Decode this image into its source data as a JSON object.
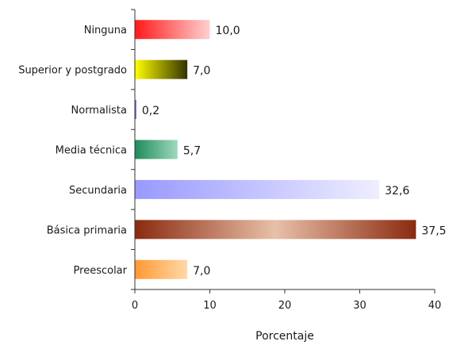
{
  "chart_data": {
    "type": "bar",
    "orientation": "horizontal",
    "categories": [
      "Ninguna",
      "Superior y postgrado",
      "Normalista",
      "Media técnica",
      "Secundaria",
      "Básica primaria",
      "Preescolar"
    ],
    "values": [
      10.0,
      7.0,
      0.2,
      5.7,
      32.6,
      37.5,
      7.0
    ],
    "value_labels": [
      "10,0",
      "7,0",
      "0,2",
      "5,7",
      "32,6",
      "37,5",
      "7,0"
    ],
    "colors": [
      [
        "#ff1a1a",
        "#ffd0d0"
      ],
      [
        "#ffff00",
        "#333300"
      ],
      [
        "#5a4ab0",
        "#8a7ad0"
      ],
      [
        "#1f8a5c",
        "#9fd9bd"
      ],
      [
        "#9999ff",
        "#eeeeff"
      ],
      [
        "#8a2a10",
        "#e8c0a8"
      ],
      [
        "#ff9933",
        "#ffd8a8"
      ]
    ],
    "xlim": [
      0,
      40
    ],
    "xticks": [
      0,
      10,
      20,
      30,
      40
    ],
    "xlabel": "Porcentaje",
    "ylabel": "",
    "title": "",
    "grid": false
  }
}
